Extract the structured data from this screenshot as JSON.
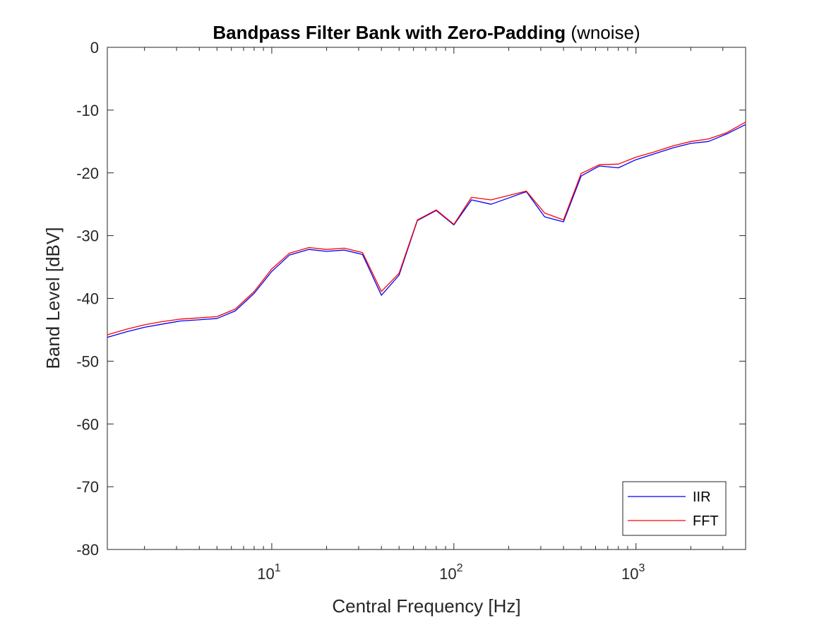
{
  "chart_data": {
    "type": "line",
    "title_bold": "Bandpass Filter Bank with Zero-Padding",
    "title_rest": "(wnoise)",
    "xlabel": "Central Frequency [Hz]",
    "ylabel": "Band Level [dBV]",
    "xscale": "log",
    "xlim": [
      1.25,
      4000
    ],
    "ylim": [
      -80,
      0
    ],
    "yticks": [
      0,
      -10,
      -20,
      -30,
      -40,
      -50,
      -60,
      -70,
      -80
    ],
    "xticks": [
      {
        "value": 10,
        "base": "10",
        "exp": "1"
      },
      {
        "value": 100,
        "base": "10",
        "exp": "2"
      },
      {
        "value": 1000,
        "base": "10",
        "exp": "3"
      }
    ],
    "grid": false,
    "legend_position": "bottom-right",
    "x": [
      1.25,
      1.6,
      2,
      2.5,
      3.15,
      4,
      5,
      6.3,
      8,
      10,
      12.5,
      16,
      20,
      25,
      31.5,
      40,
      50,
      63,
      80,
      100,
      125,
      160,
      200,
      250,
      315,
      400,
      500,
      630,
      800,
      1000,
      1250,
      1600,
      2000,
      2500,
      3150,
      4000
    ],
    "series": [
      {
        "name": "IIR",
        "color": "#0000ff",
        "values": [
          -46.2,
          -45.3,
          -44.6,
          -44.1,
          -43.6,
          -43.4,
          -43.2,
          -42.0,
          -39.2,
          -35.7,
          -33.1,
          -32.2,
          -32.5,
          -32.3,
          -33.0,
          -39.5,
          -36.3,
          -27.6,
          -26.0,
          -28.3,
          -24.3,
          -25.0,
          -24.0,
          -23.0,
          -27.0,
          -27.8,
          -20.5,
          -18.9,
          -19.2,
          -17.9,
          -17.0,
          -16.0,
          -15.3,
          -15.0,
          -13.8,
          -12.3
        ]
      },
      {
        "name": "FFT",
        "color": "#ff0000",
        "values": [
          -45.8,
          -44.9,
          -44.2,
          -43.7,
          -43.3,
          -43.1,
          -42.9,
          -41.7,
          -38.9,
          -35.3,
          -32.8,
          -31.9,
          -32.2,
          -32.0,
          -32.7,
          -38.9,
          -36.0,
          -27.5,
          -25.9,
          -28.2,
          -23.9,
          -24.3,
          -23.6,
          -22.9,
          -26.4,
          -27.5,
          -20.1,
          -18.7,
          -18.6,
          -17.5,
          -16.7,
          -15.7,
          -15.0,
          -14.6,
          -13.6,
          -11.9
        ]
      }
    ]
  }
}
